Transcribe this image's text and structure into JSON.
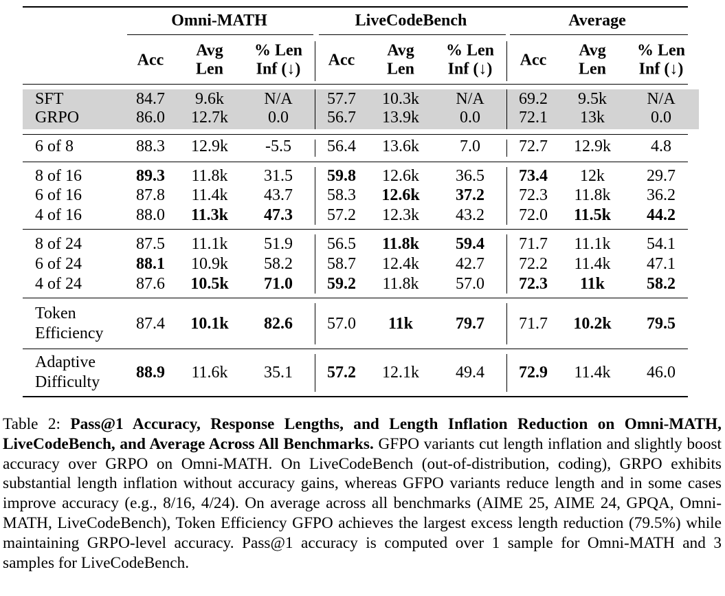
{
  "table": {
    "group_headers": [
      "Omni-MATH",
      "LiveCodeBench",
      "Average"
    ],
    "sub_headers": [
      {
        "line1": "Acc",
        "line2": ""
      },
      {
        "line1": "Avg",
        "line2": "Len"
      },
      {
        "line1": "% Len",
        "line2": "Inf (↓)"
      }
    ],
    "rows": [
      {
        "label": [
          "SFT"
        ],
        "group": 1,
        "shaded": true,
        "cells": [
          [
            "84.7",
            0
          ],
          [
            "9.6k",
            0
          ],
          [
            "N/A",
            0
          ],
          [
            "57.7",
            0
          ],
          [
            "10.3k",
            0
          ],
          [
            "N/A",
            0
          ],
          [
            "69.2",
            0
          ],
          [
            "9.5k",
            0
          ],
          [
            "N/A",
            0
          ]
        ]
      },
      {
        "label": [
          "GRPO"
        ],
        "group": 1,
        "shaded": true,
        "cells": [
          [
            "86.0",
            0
          ],
          [
            "12.7k",
            0
          ],
          [
            "0.0",
            0
          ],
          [
            "56.7",
            0
          ],
          [
            "13.9k",
            0
          ],
          [
            "0.0",
            0
          ],
          [
            "72.1",
            0
          ],
          [
            "13k",
            0
          ],
          [
            "0.0",
            0
          ]
        ]
      },
      {
        "label": [
          "6 of 8"
        ],
        "group": 2,
        "cells": [
          [
            "88.3",
            0
          ],
          [
            "12.9k",
            0
          ],
          [
            "-5.5",
            0
          ],
          [
            "56.4",
            0
          ],
          [
            "13.6k",
            0
          ],
          [
            "7.0",
            0
          ],
          [
            "72.7",
            0
          ],
          [
            "12.9k",
            0
          ],
          [
            "4.8",
            0
          ]
        ]
      },
      {
        "label": [
          "8 of 16"
        ],
        "group": 3,
        "cells": [
          [
            "89.3",
            1
          ],
          [
            "11.8k",
            0
          ],
          [
            "31.5",
            0
          ],
          [
            "59.8",
            1
          ],
          [
            "12.6k",
            0
          ],
          [
            "36.5",
            0
          ],
          [
            "73.4",
            1
          ],
          [
            "12k",
            0
          ],
          [
            "29.7",
            0
          ]
        ]
      },
      {
        "label": [
          "6 of 16"
        ],
        "group": 3,
        "cells": [
          [
            "87.8",
            0
          ],
          [
            "11.4k",
            0
          ],
          [
            "43.7",
            0
          ],
          [
            "58.3",
            0
          ],
          [
            "12.6k",
            1
          ],
          [
            "37.2",
            1
          ],
          [
            "72.3",
            0
          ],
          [
            "11.8k",
            0
          ],
          [
            "36.2",
            0
          ]
        ]
      },
      {
        "label": [
          "4 of 16"
        ],
        "group": 3,
        "cells": [
          [
            "88.0",
            0
          ],
          [
            "11.3k",
            1
          ],
          [
            "47.3",
            1
          ],
          [
            "57.2",
            0
          ],
          [
            "12.3k",
            0
          ],
          [
            "43.2",
            0
          ],
          [
            "72.0",
            0
          ],
          [
            "11.5k",
            1
          ],
          [
            "44.2",
            1
          ]
        ]
      },
      {
        "label": [
          "8 of 24"
        ],
        "group": 4,
        "cells": [
          [
            "87.5",
            0
          ],
          [
            "11.1k",
            0
          ],
          [
            "51.9",
            0
          ],
          [
            "56.5",
            0
          ],
          [
            "11.8k",
            1
          ],
          [
            "59.4",
            1
          ],
          [
            "71.7",
            0
          ],
          [
            "11.1k",
            0
          ],
          [
            "54.1",
            0
          ]
        ]
      },
      {
        "label": [
          "6 of 24"
        ],
        "group": 4,
        "cells": [
          [
            "88.1",
            1
          ],
          [
            "10.9k",
            0
          ],
          [
            "58.2",
            0
          ],
          [
            "58.7",
            0
          ],
          [
            "12.4k",
            0
          ],
          [
            "42.7",
            0
          ],
          [
            "72.2",
            0
          ],
          [
            "11.4k",
            0
          ],
          [
            "47.1",
            0
          ]
        ]
      },
      {
        "label": [
          "4 of 24"
        ],
        "group": 4,
        "cells": [
          [
            "87.6",
            0
          ],
          [
            "10.5k",
            1
          ],
          [
            "71.0",
            1
          ],
          [
            "59.2",
            1
          ],
          [
            "11.8k",
            0
          ],
          [
            "57.0",
            0
          ],
          [
            "72.3",
            1
          ],
          [
            "11k",
            1
          ],
          [
            "58.2",
            1
          ]
        ]
      },
      {
        "label": [
          "Token",
          "Efficiency"
        ],
        "group": 5,
        "cells": [
          [
            "87.4",
            0
          ],
          [
            "10.1k",
            1
          ],
          [
            "82.6",
            1
          ],
          [
            "57.0",
            0
          ],
          [
            "11k",
            1
          ],
          [
            "79.7",
            1
          ],
          [
            "71.7",
            0
          ],
          [
            "10.2k",
            1
          ],
          [
            "79.5",
            1
          ]
        ]
      },
      {
        "label": [
          "Adaptive",
          "Difficulty"
        ],
        "group": 6,
        "cells": [
          [
            "88.9",
            1
          ],
          [
            "11.6k",
            0
          ],
          [
            "35.1",
            0
          ],
          [
            "57.2",
            1
          ],
          [
            "12.1k",
            0
          ],
          [
            "49.4",
            0
          ],
          [
            "72.9",
            1
          ],
          [
            "11.4k",
            0
          ],
          [
            "46.0",
            0
          ]
        ]
      }
    ]
  },
  "caption": {
    "prefix": "Table 2: ",
    "bold": "Pass@1 Accuracy, Response Lengths, and Length Inflation Reduction on Omni-MATH, LiveCodeBench, and Average Across All Benchmarks.",
    "body": " GFPO variants cut length inflation and slightly boost accuracy over GRPO on Omni-MATH. On LiveCodeBench (out-of-distribution, coding), GRPO exhibits substantial length inflation without accuracy gains, whereas GFPO variants reduce length and in some cases improve accuracy (e.g., 8/16, 4/24). On average across all benchmarks (AIME 25, AIME 24, GPQA, Omni-MATH, LiveCodeBench), Token Efficiency GFPO achieves the largest excess length reduction (79.5%) while maintaining GRPO-level accuracy. Pass@1 accuracy is computed over 1 sample for Omni-MATH and 3 samples for LiveCodeBench."
  }
}
